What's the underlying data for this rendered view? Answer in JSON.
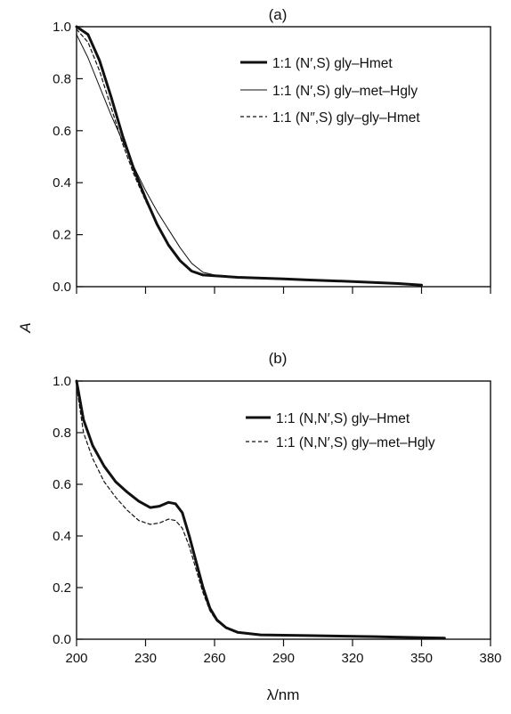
{
  "figure": {
    "ylabel": "A",
    "xlabel": "λ/nm"
  },
  "chart_data": [
    {
      "type": "line",
      "panel_label": "(a)",
      "xlim": [
        200,
        380
      ],
      "ylim": [
        0,
        1.0
      ],
      "yticks": [
        "0.0",
        "0.2",
        "0.4",
        "0.6",
        "0.8",
        "1.0"
      ],
      "x_tick_labels_shown": false,
      "series": [
        {
          "name": "1:1 (N′,S) gly–Hmet",
          "style": "thick-solid",
          "points": [
            [
              200,
              1.0
            ],
            [
              205,
              0.97
            ],
            [
              210,
              0.87
            ],
            [
              215,
              0.73
            ],
            [
              220,
              0.58
            ],
            [
              225,
              0.45
            ],
            [
              230,
              0.34
            ],
            [
              235,
              0.24
            ],
            [
              240,
              0.16
            ],
            [
              245,
              0.1
            ],
            [
              250,
              0.06
            ],
            [
              255,
              0.045
            ],
            [
              260,
              0.042
            ],
            [
              270,
              0.036
            ],
            [
              280,
              0.033
            ],
            [
              290,
              0.03
            ],
            [
              300,
              0.026
            ],
            [
              320,
              0.02
            ],
            [
              340,
              0.012
            ],
            [
              350,
              0.006
            ]
          ]
        },
        {
          "name": "1:1 (N′,S) gly–met–Hgly",
          "style": "thin-solid",
          "points": [
            [
              200,
              0.97
            ],
            [
              205,
              0.88
            ],
            [
              210,
              0.77
            ],
            [
              215,
              0.66
            ],
            [
              220,
              0.56
            ],
            [
              225,
              0.46
            ],
            [
              230,
              0.37
            ],
            [
              235,
              0.29
            ],
            [
              240,
              0.22
            ],
            [
              245,
              0.15
            ],
            [
              250,
              0.09
            ],
            [
              255,
              0.055
            ],
            [
              260,
              0.045
            ],
            [
              270,
              0.038
            ],
            [
              280,
              0.034
            ],
            [
              290,
              0.03
            ],
            [
              300,
              0.026
            ],
            [
              320,
              0.02
            ],
            [
              340,
              0.012
            ],
            [
              350,
              0.006
            ]
          ]
        },
        {
          "name": "1:1 (N″,S) gly–gly–Hmet",
          "style": "dashed",
          "points": [
            [
              200,
              0.99
            ],
            [
              205,
              0.94
            ],
            [
              210,
              0.83
            ],
            [
              215,
              0.69
            ],
            [
              220,
              0.55
            ],
            [
              225,
              0.43
            ],
            [
              230,
              0.33
            ],
            [
              235,
              0.24
            ],
            [
              240,
              0.16
            ],
            [
              245,
              0.1
            ],
            [
              250,
              0.06
            ],
            [
              255,
              0.045
            ],
            [
              260,
              0.042
            ],
            [
              270,
              0.036
            ],
            [
              280,
              0.033
            ],
            [
              290,
              0.03
            ],
            [
              300,
              0.026
            ],
            [
              320,
              0.02
            ],
            [
              340,
              0.012
            ],
            [
              350,
              0.006
            ]
          ]
        }
      ]
    },
    {
      "type": "line",
      "panel_label": "(b)",
      "xlim": [
        200,
        380
      ],
      "ylim": [
        0,
        1.0
      ],
      "xticks": [
        "200",
        "230",
        "260",
        "290",
        "320",
        "350",
        "380"
      ],
      "yticks": [
        "0.0",
        "0.2",
        "0.4",
        "0.6",
        "0.8",
        "1.0"
      ],
      "series": [
        {
          "name": "1:1 (N,N′,S) gly–Hmet",
          "style": "thick-solid",
          "points": [
            [
              200,
              1.0
            ],
            [
              203,
              0.85
            ],
            [
              207,
              0.75
            ],
            [
              212,
              0.67
            ],
            [
              217,
              0.61
            ],
            [
              222,
              0.57
            ],
            [
              227,
              0.535
            ],
            [
              232,
              0.51
            ],
            [
              236,
              0.515
            ],
            [
              240,
              0.53
            ],
            [
              243,
              0.525
            ],
            [
              246,
              0.49
            ],
            [
              249,
              0.4
            ],
            [
              252,
              0.3
            ],
            [
              255,
              0.2
            ],
            [
              258,
              0.12
            ],
            [
              261,
              0.075
            ],
            [
              265,
              0.045
            ],
            [
              270,
              0.027
            ],
            [
              280,
              0.017
            ],
            [
              300,
              0.014
            ],
            [
              330,
              0.01
            ],
            [
              350,
              0.006
            ],
            [
              360,
              0.004
            ]
          ]
        },
        {
          "name": "1:1 (N,N′,S) gly–met–Hgly",
          "style": "dashed",
          "points": [
            [
              200,
              0.98
            ],
            [
              203,
              0.8
            ],
            [
              207,
              0.7
            ],
            [
              212,
              0.61
            ],
            [
              217,
              0.55
            ],
            [
              222,
              0.5
            ],
            [
              227,
              0.46
            ],
            [
              232,
              0.445
            ],
            [
              236,
              0.45
            ],
            [
              240,
              0.465
            ],
            [
              243,
              0.46
            ],
            [
              246,
              0.43
            ],
            [
              249,
              0.36
            ],
            [
              252,
              0.27
            ],
            [
              255,
              0.18
            ],
            [
              258,
              0.11
            ],
            [
              261,
              0.07
            ],
            [
              265,
              0.043
            ],
            [
              270,
              0.026
            ],
            [
              280,
              0.017
            ],
            [
              300,
              0.014
            ],
            [
              330,
              0.01
            ],
            [
              350,
              0.006
            ],
            [
              360,
              0.004
            ]
          ]
        }
      ]
    }
  ]
}
